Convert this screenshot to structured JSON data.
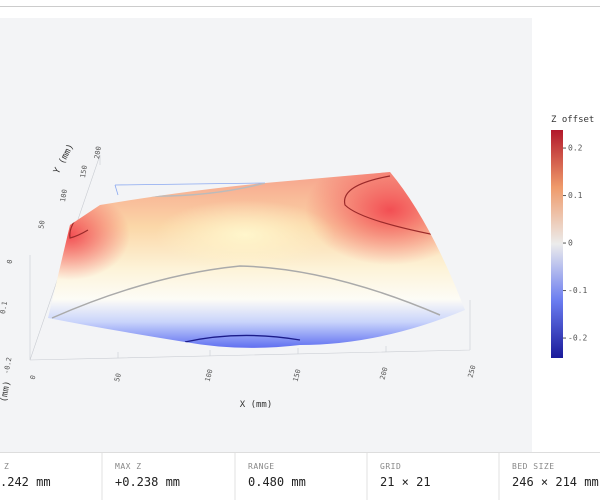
{
  "plot": {
    "x_label": "X (mm)",
    "y_label": "Y (mm)",
    "z_label": "(mm)",
    "x_ticks": [
      "0",
      "50",
      "100",
      "150",
      "200",
      "250"
    ],
    "y_ticks": [
      "0",
      "50",
      "100",
      "150",
      "200"
    ],
    "z_ticks": [
      "0.1",
      "-0.2"
    ]
  },
  "colorbar": {
    "title": "Z offset",
    "lim": [
      -0.242,
      0.238
    ],
    "ticks": [
      -0.2,
      -0.1,
      0,
      0.1,
      0.2
    ]
  },
  "stats": [
    {
      "label": "Z",
      "value": ".242 mm"
    },
    {
      "label": "MAX Z",
      "value": "+0.238 mm"
    },
    {
      "label": "RANGE",
      "value": "0.480 mm"
    },
    {
      "label": "GRID",
      "value": "21 × 21"
    },
    {
      "label": "BED SIZE",
      "value": "246 × 214 mm"
    }
  ]
}
